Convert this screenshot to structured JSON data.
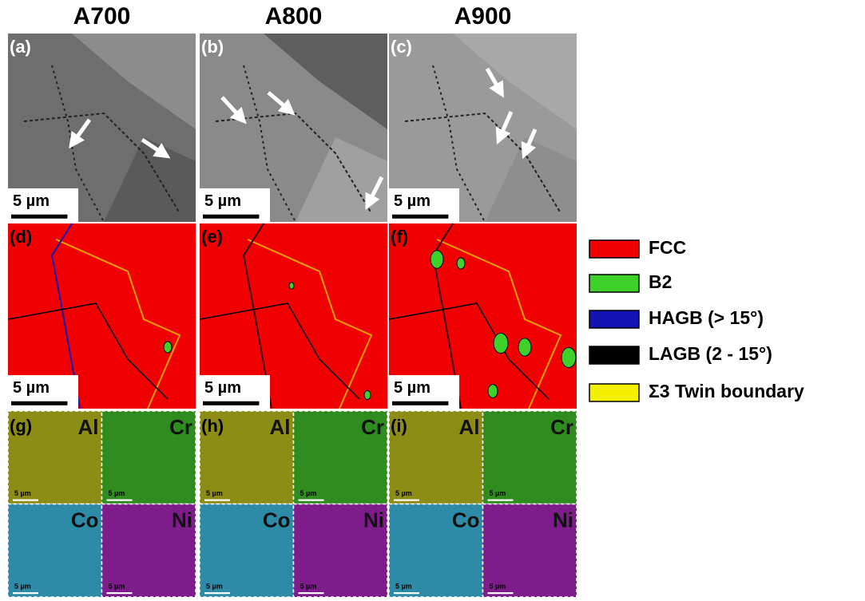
{
  "columns": [
    {
      "title": "A700",
      "sem": {
        "label": "(a)",
        "scale": "5 µm"
      },
      "phase_map": {
        "label": "(d)",
        "scale": "5 µm"
      },
      "eds": {
        "label": "(g)",
        "elements": [
          "Al",
          "Cr",
          "Co",
          "Ni"
        ],
        "scale": "5 µm"
      }
    },
    {
      "title": "A800",
      "sem": {
        "label": "(b)",
        "scale": "5 µm"
      },
      "phase_map": {
        "label": "(e)",
        "scale": "5 µm"
      },
      "eds": {
        "label": "(h)",
        "elements": [
          "Al",
          "Cr",
          "Co",
          "Ni"
        ],
        "scale": "5 µm"
      }
    },
    {
      "title": "A900",
      "sem": {
        "label": "(c)",
        "scale": "5 µm"
      },
      "phase_map": {
        "label": "(f)",
        "scale": "5 µm"
      },
      "eds": {
        "label": "(i)",
        "elements": [
          "Al",
          "Cr",
          "Co",
          "Ni"
        ],
        "scale": "5 µm"
      }
    }
  ],
  "legend": [
    {
      "label": "FCC",
      "color": "#f00000"
    },
    {
      "label": "B2",
      "color": "#3ed12a"
    },
    {
      "label": "HAGB (> 15°)",
      "color": "#1414b4"
    },
    {
      "label": "LAGB (2 - 15°)",
      "color": "#000000"
    },
    {
      "label": "Σ3 Twin boundary",
      "color": "#f5f000"
    }
  ]
}
